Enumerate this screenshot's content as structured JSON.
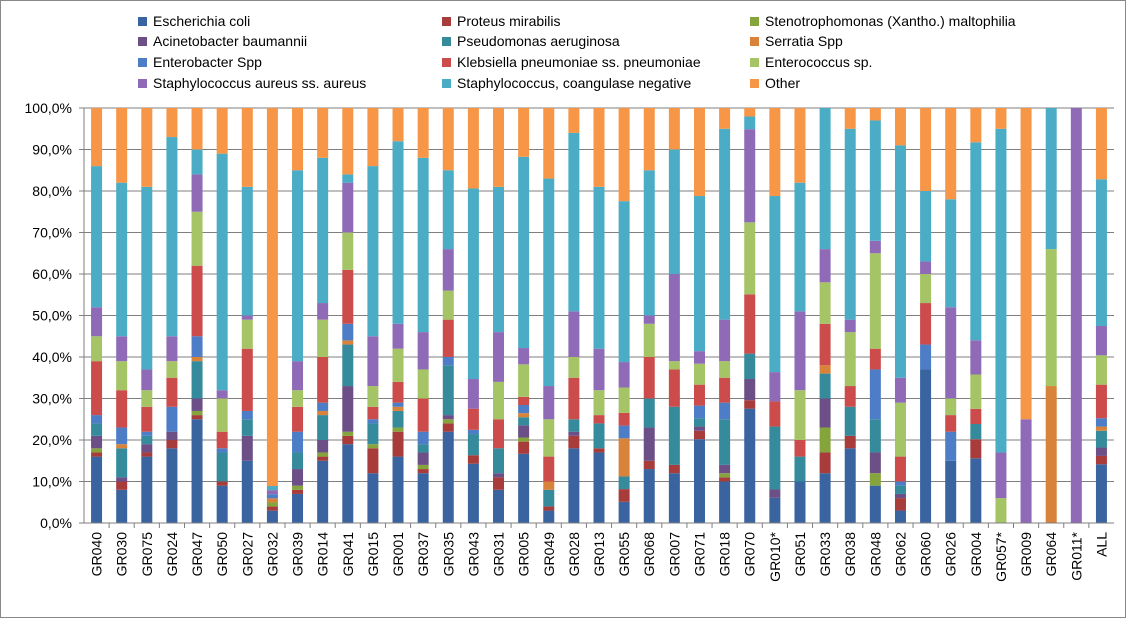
{
  "chart_data": {
    "type": "bar",
    "stacked": true,
    "normalized": true,
    "ylim": [
      0,
      100
    ],
    "ytick_labels": [
      "0,0%",
      "10,0%",
      "20,0%",
      "30,0%",
      "40,0%",
      "50,0%",
      "60,0%",
      "70,0%",
      "80,0%",
      "90,0%",
      "100,0%"
    ],
    "grid": true,
    "legend_position": "top",
    "categories": [
      "GR040",
      "GR030",
      "GR075",
      "GR024",
      "GR047",
      "GR050",
      "GR027",
      "GR032",
      "GR039",
      "GR014",
      "GR041",
      "GR015",
      "GR001",
      "GR037",
      "GR035",
      "GR043",
      "GR031",
      "GR005",
      "GR049",
      "GR028",
      "GR013",
      "GR055",
      "GR068",
      "GR007",
      "GR071",
      "GR018",
      "GR070",
      "GR010*",
      "GR051",
      "GR033",
      "GR038",
      "GR048",
      "GR062",
      "GR060",
      "GR026",
      "GR004",
      "GR057*",
      "GR009",
      "GR064",
      "GR011*",
      "ALL"
    ],
    "series": [
      {
        "name": "Escherichia coli",
        "color": "#3A64A0",
        "values": [
          16,
          8,
          16,
          18,
          25,
          9,
          15,
          3,
          7,
          15,
          19,
          12,
          16,
          12,
          22,
          14,
          8,
          17,
          3,
          18,
          17,
          5,
          13,
          12,
          20,
          10,
          27,
          6,
          10,
          12,
          18,
          9,
          3,
          37,
          15,
          17,
          0,
          0,
          0,
          0,
          14
        ]
      },
      {
        "name": "Proteus mirabilis",
        "color": "#A83C3A",
        "values": [
          1,
          2,
          1,
          2,
          1,
          1,
          0,
          1,
          1,
          1,
          2,
          6,
          6,
          1,
          2,
          2,
          3,
          3,
          1,
          3,
          1,
          3,
          2,
          2,
          2,
          1,
          2,
          0,
          0,
          5,
          3,
          0,
          3,
          0,
          0,
          5,
          0,
          0,
          0,
          0,
          2
        ]
      },
      {
        "name": "Stenotrophomonas (Xantho.) maltophilia",
        "color": "#86A43C",
        "values": [
          1,
          0,
          0,
          0,
          1,
          0,
          0,
          1,
          1,
          1,
          1,
          1,
          1,
          1,
          1,
          0,
          0,
          1,
          0,
          0,
          0,
          0,
          0,
          0,
          0,
          1,
          0,
          0,
          0,
          6,
          0,
          3,
          0,
          0,
          0,
          0,
          0,
          0,
          0,
          0,
          0
        ]
      },
      {
        "name": "Acinetobacter baumannii",
        "color": "#6B4F86",
        "values": [
          3,
          1,
          2,
          2,
          3,
          0,
          6,
          0,
          4,
          3,
          11,
          0,
          0,
          3,
          1,
          0,
          1,
          3,
          0,
          1,
          0,
          0,
          8,
          0,
          1,
          2,
          5,
          2,
          0,
          7,
          0,
          5,
          1,
          0,
          0,
          0,
          0,
          0,
          0,
          0,
          2
        ]
      },
      {
        "name": "Pseudomonas aeruginosa",
        "color": "#358A9C",
        "values": [
          3,
          7,
          2,
          0,
          9,
          7,
          4,
          0,
          4,
          6,
          10,
          5,
          4,
          2,
          12,
          5,
          6,
          2,
          4,
          3,
          6,
          3,
          7,
          14,
          2,
          11,
          6,
          15,
          6,
          6,
          7,
          8,
          2,
          0,
          0,
          4,
          0,
          0,
          0,
          0,
          4
        ]
      },
      {
        "name": "Serratia Spp",
        "color": "#D9823A",
        "values": [
          0,
          1,
          0,
          0,
          1,
          0,
          0,
          1,
          0,
          1,
          1,
          0,
          1,
          0,
          0,
          0,
          0,
          1,
          2,
          0,
          0,
          9,
          0,
          0,
          0,
          0,
          0,
          0,
          0,
          2,
          0,
          0,
          0,
          0,
          0,
          0,
          0,
          0,
          33,
          0,
          1
        ]
      },
      {
        "name": "Enterobacter Spp",
        "color": "#4C7DC6",
        "values": [
          2,
          4,
          1,
          6,
          5,
          1,
          2,
          1,
          5,
          2,
          4,
          1,
          1,
          3,
          2,
          1,
          0,
          2,
          0,
          0,
          0,
          3,
          0,
          0,
          3,
          4,
          0,
          0,
          0,
          0,
          0,
          12,
          1,
          6,
          7,
          0,
          0,
          0,
          0,
          0,
          2
        ]
      },
      {
        "name": "Klebsiella pneumoniae ss. pneumoniae",
        "color": "#CC4C4C",
        "values": [
          13,
          9,
          6,
          7,
          17,
          4,
          15,
          0,
          6,
          11,
          13,
          3,
          5,
          8,
          9,
          5,
          7,
          2,
          6,
          10,
          2,
          3,
          10,
          9,
          5,
          6,
          14,
          6,
          4,
          10,
          5,
          5,
          6,
          10,
          4,
          4,
          0,
          0,
          0,
          0,
          8
        ]
      },
      {
        "name": "Enterococcus sp.",
        "color": "#A4C465",
        "values": [
          6,
          7,
          4,
          4,
          13,
          8,
          7,
          0,
          4,
          9,
          9,
          5,
          8,
          7,
          7,
          0,
          9,
          8,
          9,
          5,
          6,
          6,
          8,
          2,
          5,
          4,
          17,
          0,
          12,
          10,
          13,
          23,
          13,
          7,
          4,
          9,
          6,
          0,
          33,
          0,
          7
        ]
      },
      {
        "name": "Staphylococcus aureus ss. aureus",
        "color": "#8F6BB7",
        "values": [
          7,
          6,
          5,
          6,
          9,
          2,
          1,
          1,
          7,
          4,
          12,
          12,
          6,
          9,
          10,
          7,
          12,
          4,
          8,
          11,
          10,
          6,
          2,
          21,
          3,
          10,
          22,
          7,
          19,
          8,
          3,
          3,
          6,
          3,
          22,
          9,
          11,
          25,
          0,
          100,
          7
        ]
      },
      {
        "name": "Staphylococcus, coangulase negative",
        "color": "#4BACC6",
        "values": [
          34,
          37,
          44,
          48,
          6,
          57,
          31,
          1,
          46,
          35,
          2,
          41,
          44,
          42,
          19,
          45,
          35,
          47,
          50,
          43,
          39,
          38,
          35,
          30,
          37,
          46,
          3,
          42,
          31,
          34,
          46,
          29,
          56,
          17,
          26,
          52,
          78,
          0,
          34,
          0,
          35
        ]
      },
      {
        "name": "Other",
        "color": "#F79646",
        "values": [
          14,
          18,
          19,
          7,
          10,
          11,
          19,
          92,
          15,
          12,
          16,
          14,
          8,
          12,
          15,
          19,
          19,
          12,
          17,
          6,
          19,
          22,
          15,
          10,
          21,
          5,
          2,
          21,
          18,
          0,
          5,
          3,
          9,
          20,
          22,
          9,
          5,
          75,
          0,
          0,
          17
        ]
      }
    ]
  }
}
